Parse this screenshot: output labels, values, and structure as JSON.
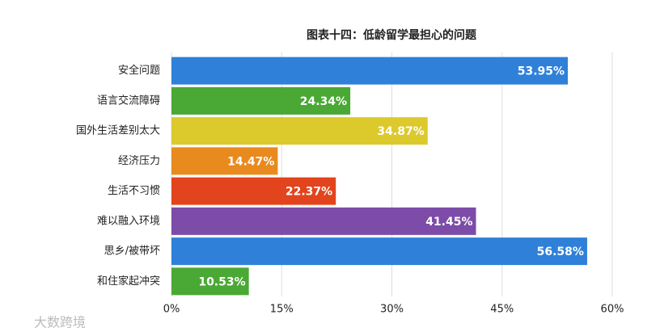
{
  "chart_data": {
    "type": "hbar",
    "title": "图表十四：低龄留学最担心的问题",
    "categories": [
      "安全问题",
      "语言交流障碍",
      "国外生活差别太大",
      "经济压力",
      "生活不习惯",
      "难以融入环境",
      "思乡/被带坏",
      "和住家起冲突"
    ],
    "values": [
      53.95,
      24.34,
      34.87,
      14.47,
      22.37,
      41.45,
      56.58,
      10.53
    ],
    "value_labels": [
      "53.95%",
      "24.34%",
      "34.87%",
      "14.47%",
      "22.37%",
      "41.45%",
      "56.58%",
      "10.53%"
    ],
    "colors": [
      "#2f80d8",
      "#4aa834",
      "#dcc92c",
      "#e98a1f",
      "#e2441d",
      "#7c4ca8",
      "#2f80d8",
      "#4aa834"
    ],
    "xlim": [
      0,
      60
    ],
    "xticks": [
      {
        "value": 0,
        "label": "0%"
      },
      {
        "value": 15,
        "label": "15%"
      },
      {
        "value": 30,
        "label": "30%"
      },
      {
        "value": 45,
        "label": "45%"
      },
      {
        "value": 60,
        "label": "60%"
      }
    ],
    "grid": true
  },
  "watermark": "大数跨境"
}
